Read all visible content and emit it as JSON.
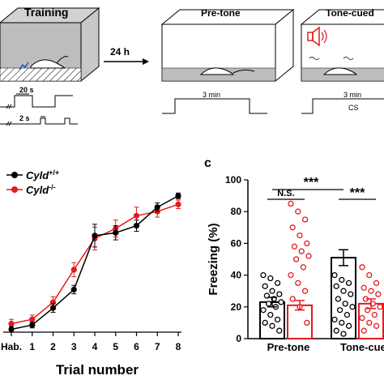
{
  "top_panel": {
    "training_label": "Training",
    "arrow_label": "24 h",
    "pretone_label": "Pre-tone",
    "tonecued_label": "Tone-cued",
    "timing_20s": "20 s",
    "timing_2s": "2 s",
    "duration_pretone": "3 min",
    "duration_tonecued": "3 min",
    "cs_label": "CS"
  },
  "chart_data": [
    {
      "type": "line",
      "xlabel": "Trial number",
      "categories": [
        "Hab.",
        "1",
        "2",
        "3",
        "4",
        "5",
        "6",
        "7",
        "8"
      ],
      "legend": [
        "Cyld +/+",
        "Cyld -/-"
      ],
      "series": [
        {
          "name": "Cyld +/+",
          "color": "#000000",
          "values": [
            2,
            5,
            17,
            30,
            68,
            70,
            75,
            88,
            96
          ],
          "errors": [
            2,
            2,
            3,
            3,
            8,
            5,
            4,
            3,
            2
          ]
        },
        {
          "name": "Cyld -/-",
          "color": "#e41a1c",
          "values": [
            6,
            9,
            21,
            44,
            66,
            73,
            82,
            85,
            90
          ],
          "errors": [
            3,
            3,
            4,
            5,
            8,
            6,
            6,
            4,
            3
          ]
        }
      ],
      "ylim": [
        0,
        105
      ]
    },
    {
      "type": "bar",
      "panel_letter": "c",
      "ylabel": "Freezing (%)",
      "yticks": [
        "0",
        "20",
        "40",
        "60",
        "80",
        "100"
      ],
      "ylim": [
        0,
        100
      ],
      "groups": [
        "Pre-tone",
        "Tone-cued te"
      ],
      "series": [
        {
          "name": "Cyld +/+",
          "color": "#000000",
          "values": [
            23,
            51
          ],
          "errors": [
            3,
            5
          ]
        },
        {
          "name": "Cyld -/-",
          "color": "#e41a1c",
          "values": [
            21,
            22
          ],
          "errors": [
            3,
            3
          ]
        }
      ],
      "points": [
        [
          [
            40,
            38,
            35,
            33,
            30,
            28,
            27,
            25,
            23,
            22,
            20,
            18,
            15,
            12,
            10,
            8,
            5
          ],
          [
            85,
            80,
            75,
            70,
            65,
            60,
            58,
            55,
            52,
            50,
            45,
            40,
            35,
            30,
            25,
            20,
            10
          ]
        ],
        [
          [
            40,
            37,
            35,
            33,
            30,
            28,
            25,
            22,
            20,
            18,
            15,
            12,
            10,
            8,
            5,
            3
          ],
          [
            45,
            40,
            35,
            32,
            30,
            28,
            25,
            22,
            20,
            18,
            15,
            13,
            10,
            8,
            5
          ]
        ]
      ],
      "significance": [
        {
          "label": "***",
          "pair": "group"
        },
        {
          "label": "N.S.",
          "pair": "pre"
        },
        {
          "label": "***",
          "pair": "tone"
        }
      ]
    }
  ]
}
